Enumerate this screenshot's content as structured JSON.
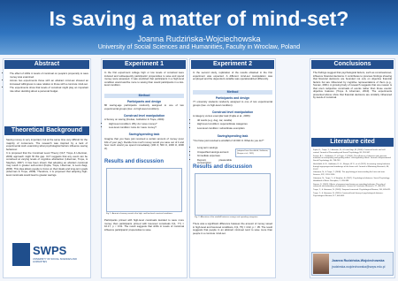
{
  "header": {
    "title": "Is saving a matter of mind-set?",
    "author": "Joanna Rudzińska-Wojciechowska",
    "affiliation": "University of Social Sciences and Humanities, Faculty in Wroclaw, Poland"
  },
  "abstract": {
    "heading": "Abstract",
    "bullets": [
      "The effect of shifts in levels of construal on people's propensity to save money was examined.",
      "Across two experiments those with an abstract mind-set showed an increased willingness to save relative to those with a concrete mind-set.",
      "The experiments show that levels of construal might play an important role when deciding about a personal budget."
    ]
  },
  "background": {
    "heading": "Theoretical Background",
    "paragraphs": [
      "Saving money is very important, but at the same time very difficult for the majority of consumers. The research was inspired by a lack of experimental work examining what psychological factors influence saving behaviour.",
      "It is proposed that the Construal Level Theory (CLT; Trope & Liberman, 2003) approach might fill this gap. CLT suggests that any event can be construed at varying levels of cognitive abstraction (Liberman, Trope, & Stephan, 2007). It has been shown that adopting an abstract construal may result in greater self-control (Fujita, Trope, Liberman, & Levin-Sagi, 2006). This idea allows people to focus on their ideals and long-term goals (Liberman & Trope, 2008). Therefore, it is proposed that adopting high-level construals would lead to greater savings."
    ]
  },
  "logo": {
    "name": "SWPS",
    "sub": "UNIVERSITY OF SOCIAL SCIENCES AND HUMANITIES"
  },
  "experiment1": {
    "heading": "Experiment 1",
    "intro": "In the first experiment college high or low levels of construal were induced and subsequently participants' propensities to save and spend money were assessed. It was predicted that participants in a high-level condition would ascribe more to saving than would participants in a low-level condition.",
    "method": "Method",
    "participants_heading": "Participants and design",
    "participants_text": "80 saving-age participants randomly assigned to one of two experimental groups (low- vs high-level condition).",
    "construal_heading": "Construal level manipulation",
    "construal_text": "A Survey on saving (Freitas, Gollwitzer & Trope, 2004):",
    "construal_items": [
      "High-level condition: Why do I save money?",
      "Low-level condition: How do I save money?"
    ],
    "saving_heading": "Saving/spending task",
    "saving_text": "Imagine that you have just received a certain amount of money (over 10k of your pay). Decide how much money would you save out of it and how much would you spend immediately (100 zł, 500 zł, 1000 zł, 2000 zł).",
    "results_heading": "Results and discussion",
    "figure_caption": "Fig. 1. Amount of money saved in the high- and low-level construal conditions.",
    "results_text": "Participants primed with high-level construals decided to save more money than participants primed with low-level construals F(1, 77) = 10.17, p < 0.01. The result suggests that shifts in levels of construal influence participants' propensities to save."
  },
  "experiment2": {
    "heading": "Experiment 2",
    "intro": "In the second study, replication of the results obtained in the first experiment was expected. A different mind-set manipulation was employed and the dependent variable was operationalized differently.",
    "method": "Method",
    "participants_heading": "Participants and design",
    "participants_text": "77 university students randomly assigned to one of two experimental groups (low- vs high-level condition).",
    "construal_heading": "Construal level manipulation",
    "construal_text": "A category versus exemplar task (Fujita et al., 2006):",
    "construal_items": [
      "40 words (e.g. dog, car, candle)",
      "High-level condition: superordinate categories",
      "Low-level condition: subordinate exemplars"
    ],
    "saving_heading": "Saving/spending task",
    "saving_text": "\"You have just received a windfall of 10 000 zł. What do you do?\"",
    "saving_items": [
      "Long-term savings",
      "Unspecified savings account",
      "Immediate expenses",
      "Deposit, pleasurable consumption"
    ],
    "saving_note": "(adapted from Hershfield, Goldstein, Sharpe et al., 2011)",
    "results_heading": "Results and discussion",
    "figure_caption": "Fig. 2. Allocation of the windfall between savings and spending categories.",
    "results_text": "There was a significant difference between the amount of money saved in high-level and low-level conditions, F(1, 75) = 4.02, p < .05. The result suggests that people in an abstract mind-set tend to save more than people in a concrete mind-set."
  },
  "conclusions": {
    "heading": "Conclusions",
    "text": "The findings suggest that psychological factors, such as construal-level, influence financial decisions. It contributes to previous findings showing that financial decisions are bounded not only on objective financial factors but are influenced by cognitive representations of them (e.g., Soman, 2001). A growing body of research suggests that one reason is that one's subjective construals of events rather than those events' objective features (Trope & Liberman, 2010). The experiments presented above show that financial decisions are similarly influenced by levels of construal."
  },
  "literature": {
    "heading": "Literature cited",
    "refs": [
      "Fujita, K., Trope, Y., Liberman, N., & Levin-Sagi, M. (2006). Construal levels and self-control. Journal of Personality and Social Psychology, 90, 351-367.",
      "Freitas, A. L., Gollwitzer, P., & Trope, Y. (2004). The influence of abstract and concrete mindsets on anticipating and guiding others' self-regulatory efforts. Journal of Experimental Social Psychology, 40, 739-752.",
      "Hershfield, H. E., Goldstein, D. G., Sharpe, W. F., et al. (2011). Increasing saving behavior through age-progressed renderings of the future self. Journal of Marketing Research, 48, 23-37.",
      "Liberman, N., & Trope, Y. (2008). The psychology of transcending the here and now. Science, 322, 1201-1205.",
      "Liberman, N., Trope, Y., & Stephan, E. (2007). Psychological distance. Social Psychology: Handbook of Basic Principles, 2, 353-383.",
      "Soman, D. (2001). Effects of payment mechanism on spending behavior: The role of rehearsal and immediacy of payments. Journal of Consumer Research, 27, 460-474.",
      "Trope, Y., & Liberman, N. (2003). Temporal construal. Psychological Review, 110, 403-421.",
      "Trope, Y., & Liberman, N. (2010). Construal-level theory of psychological distance. Psychological Review, 117, 440-463."
    ]
  },
  "contact": {
    "name": "Joanna Rudzińska-Wojciechowska",
    "email": "jrudzinska-wojciechowska@swps.edu.pl"
  }
}
